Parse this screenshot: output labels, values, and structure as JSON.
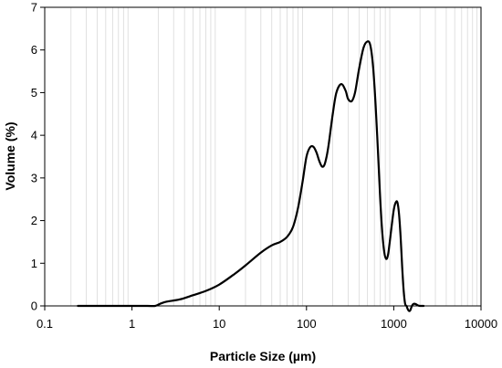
{
  "chart_data": {
    "type": "line",
    "title": "",
    "xlabel": "Particle Size (µm)",
    "ylabel": "Volume (%)",
    "x_scale": "log",
    "xlim": [
      0.1,
      10000
    ],
    "ylim": [
      0,
      7
    ],
    "x_ticks": [
      "0.1",
      "1",
      "10",
      "100",
      "1000",
      "10000"
    ],
    "y_ticks": [
      "0",
      "1",
      "2",
      "3",
      "4",
      "5",
      "6",
      "7"
    ],
    "grid": "vertical minor gridlines (light gray)",
    "legend": "none",
    "line_color": "#000000",
    "grid_color": "#d9d9d9",
    "series": [
      {
        "x": [
          0.24,
          0.5,
          1,
          1.5,
          1.85,
          2.1,
          2.5,
          3.5,
          5,
          7,
          10,
          15,
          20,
          30,
          40,
          50,
          60,
          70,
          80,
          90,
          100,
          110,
          120,
          130,
          140,
          150,
          160,
          170,
          180,
          200,
          220,
          250,
          280,
          300,
          330,
          360,
          400,
          450,
          500,
          540,
          580,
          620,
          660,
          700,
          740,
          780,
          820,
          860,
          900,
          950,
          1000,
          1050,
          1100,
          1150,
          1200,
          1250,
          1300,
          1350,
          1400,
          1450,
          1500,
          1550,
          1600,
          1650,
          1700,
          1800,
          1900,
          2000,
          2100,
          2200
        ],
        "y": [
          0,
          0,
          0,
          0,
          0,
          0.05,
          0.1,
          0.15,
          0.25,
          0.35,
          0.5,
          0.75,
          0.95,
          1.25,
          1.42,
          1.5,
          1.62,
          1.85,
          2.3,
          2.9,
          3.5,
          3.72,
          3.73,
          3.6,
          3.4,
          3.27,
          3.3,
          3.5,
          3.8,
          4.5,
          5.0,
          5.2,
          5.05,
          4.85,
          4.8,
          5.0,
          5.55,
          6.05,
          6.2,
          6.1,
          5.6,
          4.7,
          3.6,
          2.5,
          1.7,
          1.25,
          1.1,
          1.2,
          1.5,
          1.9,
          2.25,
          2.42,
          2.43,
          2.15,
          1.6,
          0.9,
          0.35,
          0.05,
          0,
          -0.08,
          -0.12,
          -0.1,
          -0.02,
          0.03,
          0.05,
          0.04,
          0.01,
          0,
          0,
          0
        ]
      }
    ]
  }
}
